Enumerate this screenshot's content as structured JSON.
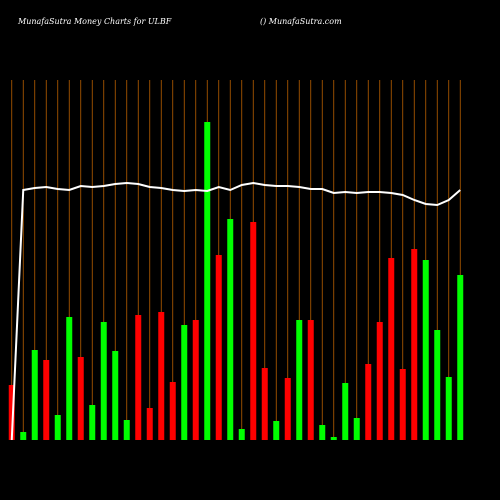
{
  "chart_data": {
    "type": "money-flow",
    "title": "MunafaSutra  Money  Charts for ULBF",
    "subtitle": "() MunafaSutra.com",
    "categories": [
      null,
      null,
      null,
      null,
      null,
      null,
      null,
      null,
      null,
      null,
      null,
      null,
      null,
      null,
      null,
      null,
      null,
      null,
      null,
      null,
      null,
      null,
      null,
      null,
      null,
      null,
      null,
      null,
      null,
      null,
      null,
      null,
      null,
      null,
      null,
      null,
      null,
      null,
      null,
      null
    ],
    "bars": {
      "values": [
        55,
        8,
        90,
        80,
        25,
        123,
        83,
        35,
        118,
        89,
        20,
        125,
        32,
        128,
        58,
        115,
        120,
        318,
        185,
        221,
        11,
        218,
        72,
        19,
        62,
        120,
        120,
        15,
        3,
        57,
        22,
        76,
        118,
        182,
        71,
        191,
        180,
        110,
        63,
        165
      ],
      "colors": [
        "#ff0000",
        "#00ff00",
        "#00ff00",
        "#ff0000",
        "#00ff00",
        "#00ff00",
        "#ff0000",
        "#00ff00",
        "#00ff00",
        "#00ff00",
        "#00ff00",
        "#ff0000",
        "#ff0000",
        "#ff0000",
        "#ff0000",
        "#00ff00",
        "#ff0000",
        "#00ff00",
        "#ff0000",
        "#00ff00",
        "#00ff00",
        "#ff0000",
        "#ff0000",
        "#00ff00",
        "#ff0000",
        "#00ff00",
        "#ff0000",
        "#00ff00",
        "#00ff00",
        "#00ff00",
        "#00ff00",
        "#ff0000",
        "#ff0000",
        "#ff0000",
        "#ff0000",
        "#ff0000",
        "#00ff00",
        "#00ff00",
        "#00ff00",
        "#00ff00"
      ]
    },
    "line": {
      "color": "#ffffff",
      "values": [
        0,
        250,
        252,
        253,
        251,
        250,
        254,
        253,
        254,
        256,
        257,
        256,
        253,
        252,
        250,
        249,
        250,
        249,
        253,
        250,
        255,
        257,
        255,
        254,
        254,
        253,
        251,
        251,
        247,
        248,
        247,
        248,
        248,
        247,
        245,
        240,
        236,
        235,
        240,
        250
      ]
    },
    "grid": true,
    "grid_color": "#b86000"
  }
}
